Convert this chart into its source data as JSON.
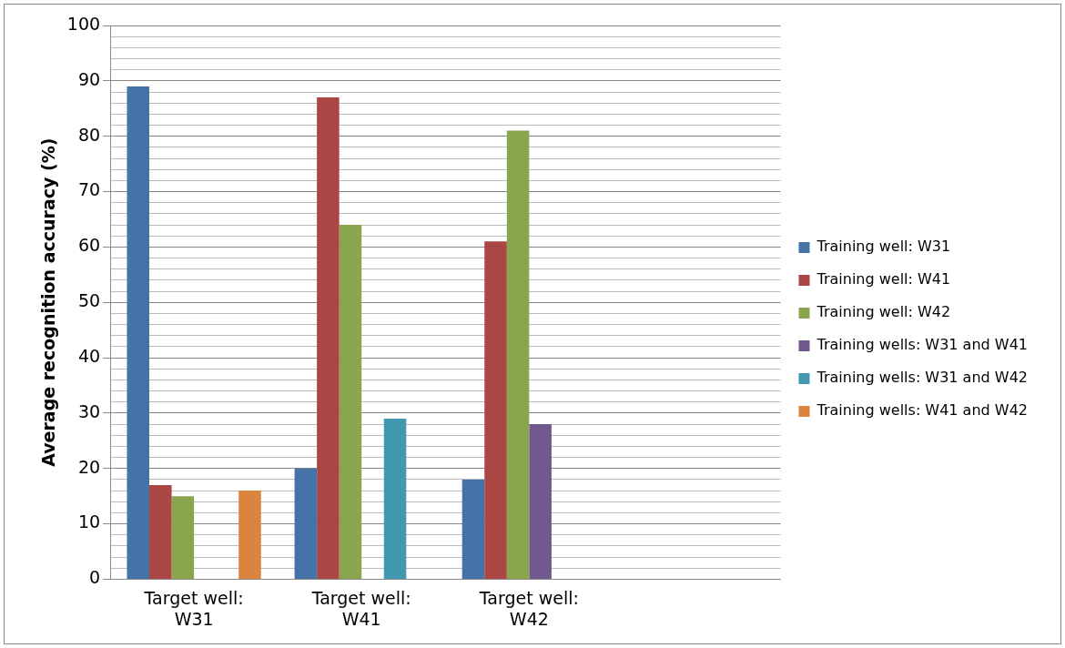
{
  "chart_data": {
    "type": "bar",
    "ylabel": "Average recognition accuracy (%)",
    "categories": [
      "Target well: W31",
      "Target well: W41",
      "Target well: W42",
      null
    ],
    "series": [
      {
        "name": "Training well: W31",
        "color": "#4572a7",
        "values": [
          89,
          20,
          18,
          null
        ]
      },
      {
        "name": "Training well: W41",
        "color": "#aa4643",
        "values": [
          17,
          87,
          61,
          null
        ]
      },
      {
        "name": "Training well: W42",
        "color": "#89a54e",
        "values": [
          15,
          64,
          81,
          null
        ]
      },
      {
        "name": "Training wells: W31 and W41",
        "color": "#71588f",
        "values": [
          null,
          null,
          28,
          null
        ]
      },
      {
        "name": "Training wells: W31 and W42",
        "color": "#4198af",
        "values": [
          null,
          29,
          null,
          null
        ]
      },
      {
        "name": "Training wells: W41 and W42",
        "color": "#db843d",
        "values": [
          16,
          null,
          null,
          null
        ]
      }
    ],
    "ylim": [
      0,
      100
    ],
    "yticks": [
      0,
      {
        "value": 2,
        "label": null
      },
      {
        "value": 4,
        "label": null
      },
      {
        "value": 6,
        "label": null
      },
      {
        "value": 8,
        "label": null
      },
      10,
      {
        "value": 12,
        "label": null
      },
      {
        "value": 14,
        "label": null
      },
      {
        "value": 16,
        "label": null
      },
      {
        "value": 18,
        "label": null
      },
      20,
      {
        "value": 22,
        "label": null
      },
      {
        "value": 24,
        "label": null
      },
      {
        "value": 26,
        "label": null
      },
      {
        "value": 28,
        "label": null
      },
      30,
      {
        "value": 32,
        "label": null
      },
      {
        "value": 34,
        "label": null
      },
      {
        "value": 36,
        "label": null
      },
      {
        "value": 38,
        "label": null
      },
      40,
      {
        "value": 42,
        "label": null
      },
      {
        "value": 44,
        "label": null
      },
      {
        "value": 46,
        "label": null
      },
      {
        "value": 48,
        "label": null
      },
      50,
      {
        "value": 52,
        "label": null
      },
      {
        "value": 54,
        "label": null
      },
      {
        "value": 56,
        "label": null
      },
      {
        "value": 58,
        "label": null
      },
      60,
      {
        "value": 62,
        "label": null
      },
      {
        "value": 64,
        "label": null
      },
      {
        "value": 66,
        "label": null
      },
      {
        "value": 68,
        "label": null
      },
      70,
      {
        "value": 72,
        "label": null
      },
      {
        "value": 74,
        "label": null
      },
      {
        "value": 76,
        "label": null
      },
      {
        "value": 78,
        "label": null
      },
      80,
      {
        "value": 82,
        "label": null
      },
      {
        "value": 84,
        "label": null
      },
      {
        "value": 86,
        "label": null
      },
      {
        "value": 88,
        "label": null
      },
      90,
      {
        "value": 92,
        "label": null
      },
      {
        "value": 94,
        "label": null
      },
      {
        "value": 96,
        "label": null
      },
      {
        "value": 98,
        "label": null
      },
      100
    ],
    "grid": "y",
    "legend": "right"
  }
}
